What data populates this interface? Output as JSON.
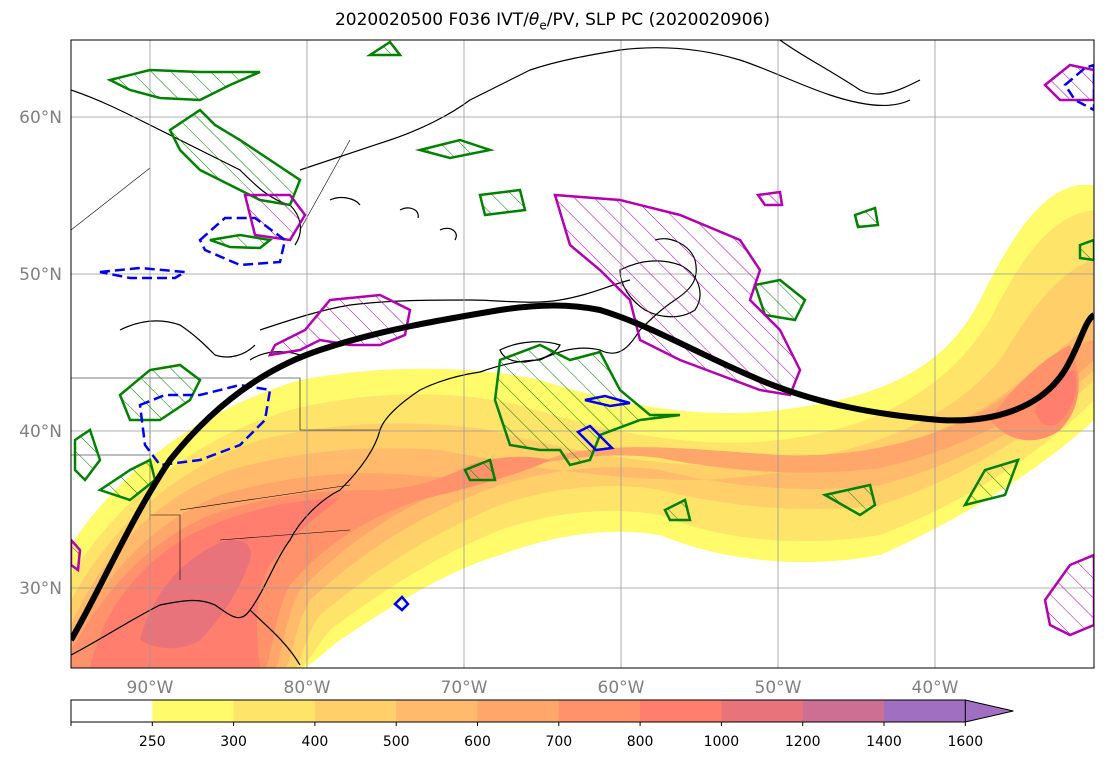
{
  "title": {
    "prefix": "2020020500 F036 IVT/",
    "theta": "θ",
    "theta_sub": "e",
    "suffix": "/PV, SLP PC (2020020906)"
  },
  "map": {
    "lat_labels": [
      "60°N",
      "50°N",
      "40°N",
      "30°N"
    ],
    "lon_labels": [
      "90°W",
      "80°W",
      "70°W",
      "60°W",
      "50°W",
      "40°W"
    ],
    "gridlines": true
  },
  "colorbar": {
    "ticks": [
      "250",
      "300",
      "400",
      "500",
      "600",
      "700",
      "800",
      "1000",
      "1200",
      "1400",
      "1600"
    ],
    "colors": [
      "#ffffff",
      "#fffb6b",
      "#ffe46a",
      "#ffcf6a",
      "#ffbb6b",
      "#ffa66b",
      "#ff926b",
      "#ff7e6e",
      "#e8737a",
      "#cc6f93",
      "#a06fc2"
    ],
    "extend": "max"
  },
  "contour_colors": {
    "ivt_pc": "#000000",
    "theta_e": "#008000",
    "pv_high": "#b000b0",
    "pv_low": "#0000ee"
  }
}
